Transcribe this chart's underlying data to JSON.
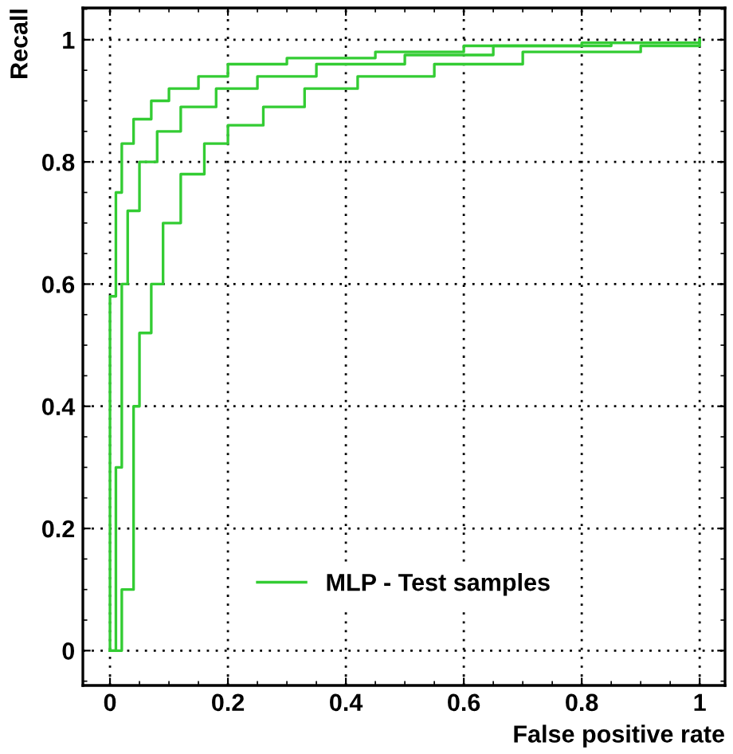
{
  "chart_data": {
    "type": "step",
    "xlabel": "False positive rate",
    "ylabel": "Recall",
    "xlim": [
      -0.046,
      1.043
    ],
    "ylim": [
      -0.057,
      1.052
    ],
    "xticks": [
      0,
      0.2,
      0.4,
      0.6,
      0.8,
      1
    ],
    "yticks": [
      0,
      0.2,
      0.4,
      0.6,
      0.8,
      1
    ],
    "grid": true,
    "legend": "bottom",
    "series": [
      {
        "name": "MLP - Test samples",
        "color": "#33cc33",
        "x": [
          0,
          0,
          0.01,
          0.02,
          0.04,
          0.07,
          0.1,
          0.15,
          0.2,
          0.3,
          0.45,
          0.6,
          0.8,
          1
        ],
        "values": [
          0,
          0.58,
          0.75,
          0.83,
          0.87,
          0.9,
          0.92,
          0.94,
          0.96,
          0.97,
          0.98,
          0.99,
          0.995,
          1
        ]
      },
      {
        "color": "#33cc33",
        "x": [
          0,
          0.01,
          0.02,
          0.03,
          0.05,
          0.08,
          0.12,
          0.18,
          0.25,
          0.35,
          0.5,
          0.65,
          0.85,
          1
        ],
        "values": [
          0,
          0.3,
          0.6,
          0.72,
          0.8,
          0.85,
          0.89,
          0.92,
          0.94,
          0.96,
          0.975,
          0.99,
          0.995,
          1
        ]
      },
      {
        "color": "#33cc33",
        "x": [
          0,
          0.02,
          0.04,
          0.05,
          0.07,
          0.09,
          0.12,
          0.16,
          0.2,
          0.26,
          0.33,
          0.42,
          0.55,
          0.7,
          0.9,
          1
        ],
        "values": [
          0,
          0.1,
          0.4,
          0.52,
          0.6,
          0.7,
          0.78,
          0.83,
          0.86,
          0.89,
          0.92,
          0.94,
          0.96,
          0.98,
          0.99,
          1
        ]
      }
    ]
  }
}
